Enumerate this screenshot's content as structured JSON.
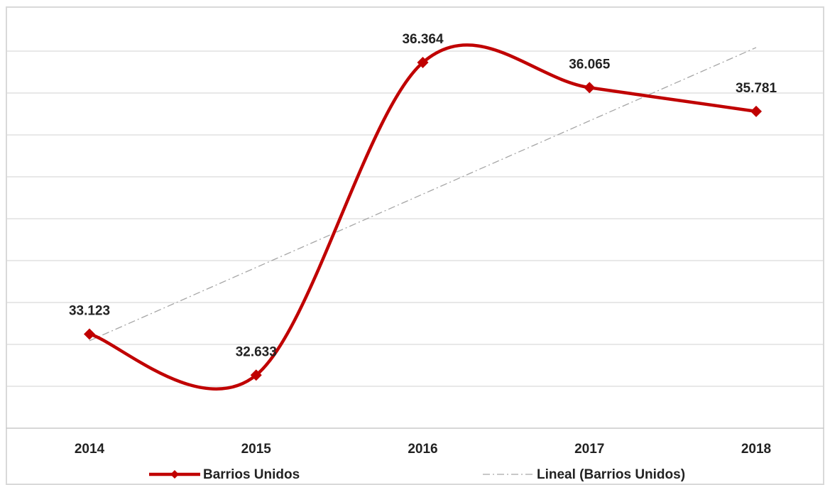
{
  "chart_data": {
    "type": "line",
    "categories": [
      "2014",
      "2015",
      "2016",
      "2017",
      "2018"
    ],
    "series": [
      {
        "name": "Barrios Unidos",
        "color": "#c00000",
        "values": [
          33123,
          32633,
          36364,
          36065,
          35781
        ],
        "value_labels": [
          "33.123",
          "32.633",
          "36.364",
          "36.065",
          "35.781"
        ]
      }
    ],
    "trendline": {
      "name": "Lineal (Barrios Unidos)",
      "color": "#a6a6a6"
    },
    "ylim": [
      32000,
      37000
    ],
    "yticks": [
      32000,
      32500,
      33000,
      33500,
      34000,
      34500,
      35000,
      35500,
      36000,
      36500
    ],
    "grid": true
  }
}
